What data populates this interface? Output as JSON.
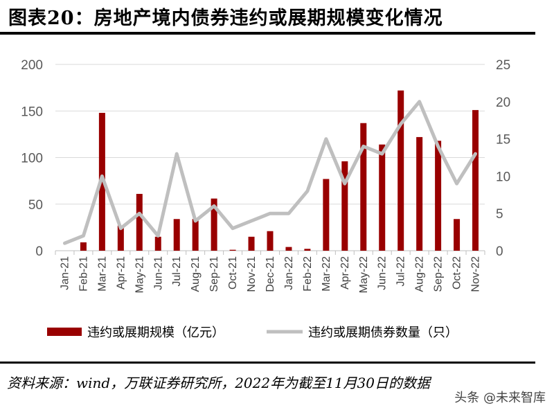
{
  "header": {
    "title": "图表20：房地产境内债券违约或展期规模变化情况"
  },
  "footer": {
    "source": "资料来源：wind，万联证券研究所，2022年为截至11月30日的数据",
    "watermark": "头条 @未来智库"
  },
  "chart_data": {
    "type": "bar",
    "categories": [
      "Jan-21",
      "Feb-21",
      "Mar-21",
      "Apr-21",
      "May-21",
      "Jun-21",
      "Jul-21",
      "Aug-21",
      "Sep-21",
      "Oct-21",
      "Nov-21",
      "Dec-21",
      "Jan-22",
      "Feb-22",
      "Mar-22",
      "Apr-22",
      "May-22",
      "Jun-22",
      "Jul-22",
      "Aug-22",
      "Sep-22",
      "Oct-22",
      "Nov-22"
    ],
    "series": [
      {
        "name": "违约或展期规模（亿元）",
        "type": "bar",
        "axis": "left",
        "color": "#990000",
        "values": [
          0,
          9,
          148,
          27,
          61,
          15,
          34,
          34,
          56,
          1,
          15,
          21,
          4,
          2,
          77,
          96,
          137,
          114,
          172,
          122,
          118,
          34,
          151
        ]
      },
      {
        "name": "违约或展期债券数量（只）",
        "type": "line",
        "axis": "right",
        "color": "#bfbfbf",
        "values": [
          1,
          2,
          10,
          3,
          5,
          2,
          13,
          4,
          6,
          3,
          4,
          5,
          5,
          8,
          15,
          9,
          14,
          13,
          17,
          20,
          14,
          9,
          13
        ]
      }
    ],
    "y_left": {
      "ylim": [
        0,
        200
      ],
      "ticks": [
        "0",
        "50",
        "100",
        "150",
        "200"
      ]
    },
    "y_right": {
      "ylim": [
        0,
        25
      ],
      "ticks": [
        "0",
        "5",
        "10",
        "15",
        "20",
        "25"
      ]
    },
    "grid": true,
    "legend": "bottom"
  }
}
